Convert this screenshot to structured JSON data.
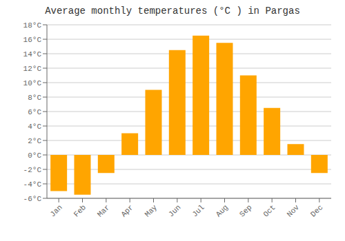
{
  "chart_data": {
    "type": "bar",
    "title": "Average monthly temperatures (°C ) in Pargas",
    "categories": [
      "Jan",
      "Feb",
      "Mar",
      "Apr",
      "May",
      "Jun",
      "Jul",
      "Aug",
      "Sep",
      "Oct",
      "Nov",
      "Dec"
    ],
    "values": [
      -5.0,
      -5.5,
      -2.5,
      3.0,
      9.0,
      14.5,
      16.5,
      15.5,
      11.0,
      6.5,
      1.5,
      -2.5
    ],
    "color": "#FFA500",
    "ylim": [
      -6,
      18
    ],
    "yticks": [
      {
        "value": -6,
        "label": "-6°C"
      },
      {
        "value": -4,
        "label": "-4°C"
      },
      {
        "value": -2,
        "label": "-2°C"
      },
      {
        "value": 0,
        "label": "0°C"
      },
      {
        "value": 2,
        "label": "2°C"
      },
      {
        "value": 4,
        "label": "4°C"
      },
      {
        "value": 6,
        "label": "6°C"
      },
      {
        "value": 8,
        "label": "8°C"
      },
      {
        "value": 10,
        "label": "10°C"
      },
      {
        "value": 12,
        "label": "12°C"
      },
      {
        "value": 14,
        "label": "14°C"
      },
      {
        "value": 16,
        "label": "16°C"
      },
      {
        "value": 18,
        "label": "18°C"
      }
    ],
    "grid": true
  }
}
